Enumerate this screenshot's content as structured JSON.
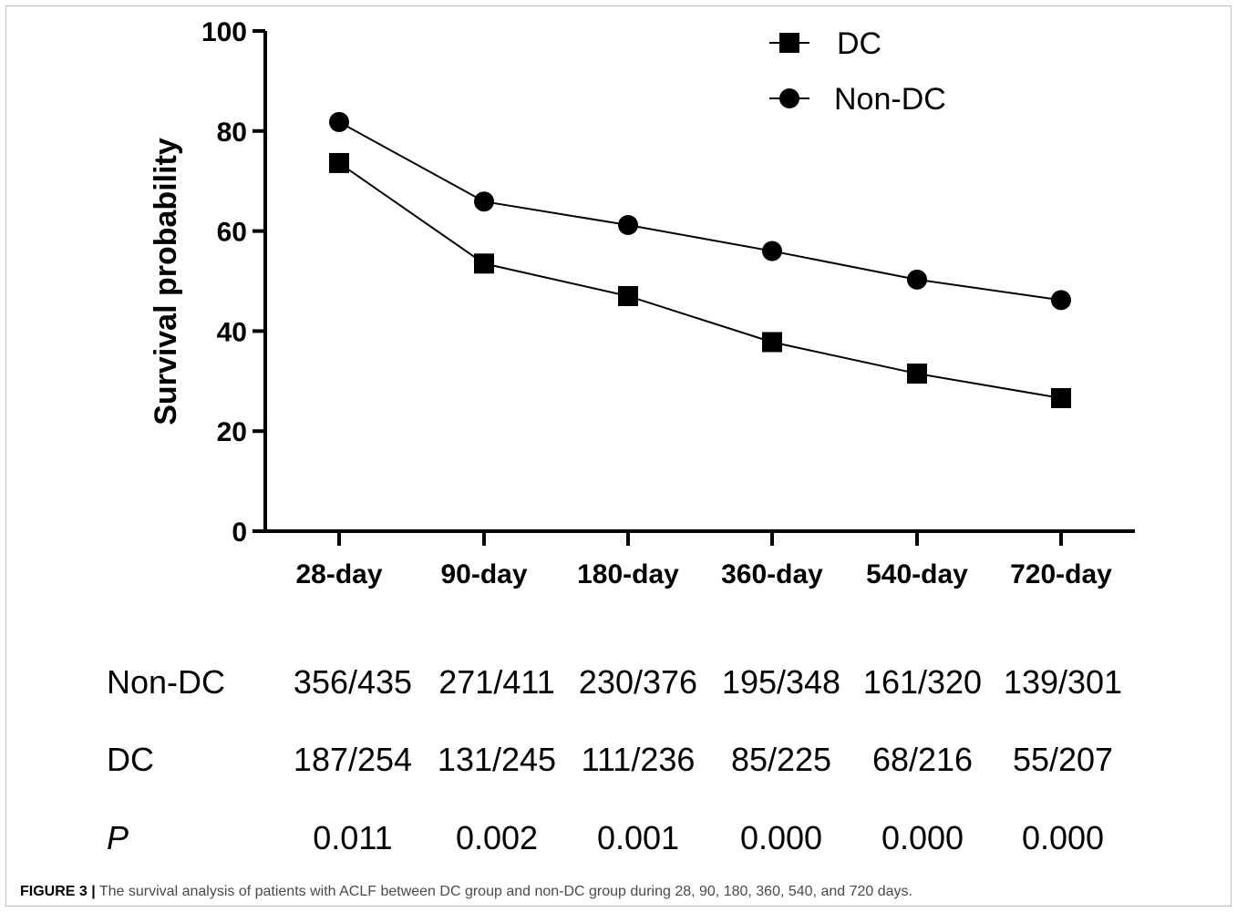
{
  "chart_data": {
    "type": "line",
    "categories": [
      "28-day",
      "90-day",
      "180-day",
      "360-day",
      "540-day",
      "720-day"
    ],
    "ylabel": "Survival probability",
    "xlabel": "",
    "ylim": [
      0,
      100
    ],
    "yticks": [
      0,
      20,
      40,
      60,
      80,
      100
    ],
    "legend_position": "top-right",
    "grid": false,
    "series": [
      {
        "name": "DC",
        "marker": "square",
        "color": "#000000",
        "values": [
          73.6,
          53.5,
          47.0,
          37.8,
          31.5,
          26.6
        ]
      },
      {
        "name": "Non-DC",
        "marker": "circle",
        "color": "#000000",
        "values": [
          81.8,
          65.9,
          61.2,
          56.0,
          50.3,
          46.2
        ]
      }
    ]
  },
  "risk_table": {
    "rows": [
      {
        "label": "Non-DC",
        "values": [
          "356/435",
          "271/411",
          "230/376",
          "195/348",
          "161/320",
          "139/301"
        ]
      },
      {
        "label": "DC",
        "values": [
          "187/254",
          "131/245",
          "111/236",
          "85/225",
          "68/216",
          "55/207"
        ]
      },
      {
        "label": "P",
        "values": [
          "0.011",
          "0.002",
          "0.001",
          "0.000",
          "0.000",
          "0.000"
        ]
      }
    ]
  },
  "caption": {
    "label": "FIGURE 3 |",
    "text": " The survival analysis of patients with ACLF between DC group and non-DC group during 28, 90, 180, 360, 540, and 720 days."
  }
}
